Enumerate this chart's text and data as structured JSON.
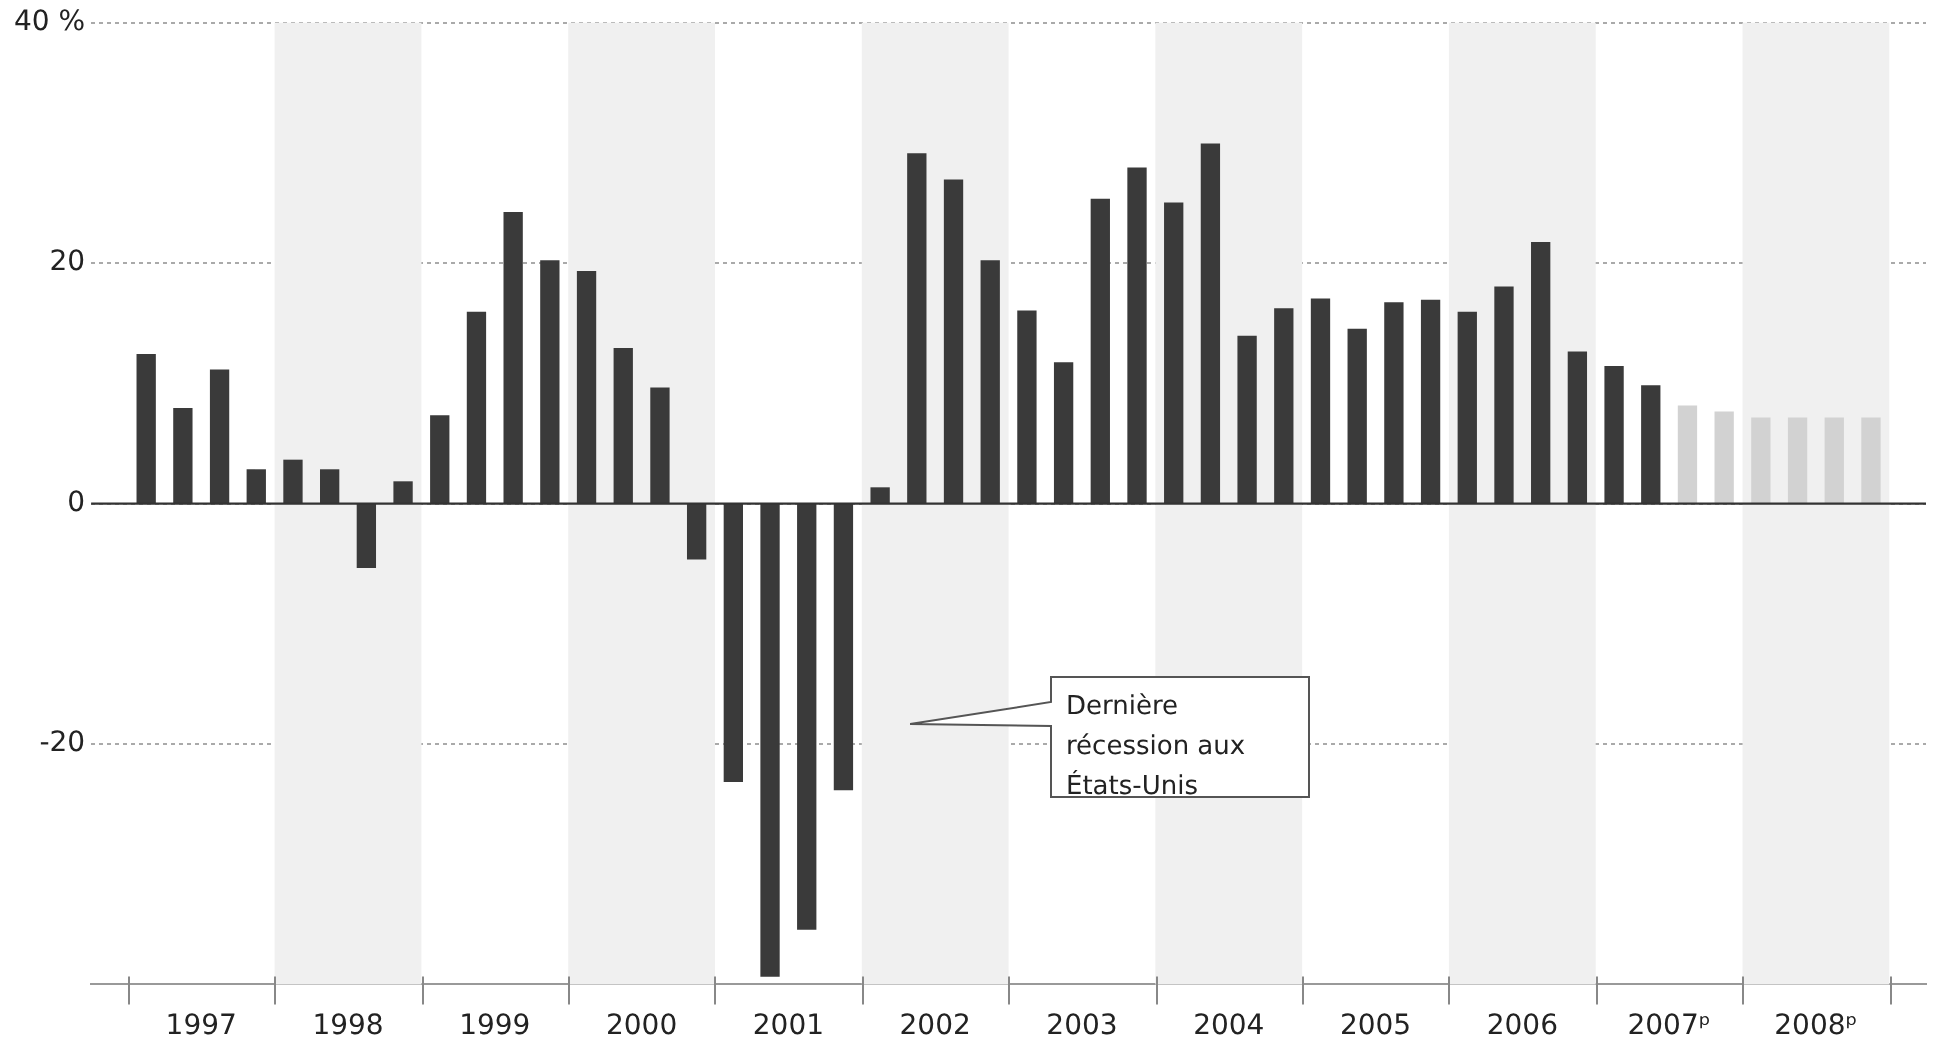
{
  "chart_data": {
    "type": "bar",
    "x": [
      1997.125,
      1997.375,
      1997.625,
      1997.875,
      1998.125,
      1998.375,
      1998.625,
      1998.875,
      1999.125,
      1999.375,
      1999.625,
      1999.875,
      2000.125,
      2000.375,
      2000.625,
      2000.875,
      2001.125,
      2001.375,
      2001.625,
      2001.875,
      2002.125,
      2002.375,
      2002.625,
      2002.875,
      2003.125,
      2003.375,
      2003.625,
      2003.875,
      2004.125,
      2004.375,
      2004.625,
      2004.875,
      2005.125,
      2005.375,
      2005.625,
      2005.875,
      2006.125,
      2006.375,
      2006.625,
      2006.875,
      2007.125,
      2007.375,
      2007.625,
      2007.875,
      2008.125,
      2008.375,
      2008.625,
      2008.875
    ],
    "values": [
      12.4,
      7.9,
      11.1,
      2.8,
      3.6,
      2.8,
      -5.3,
      1.8,
      7.3,
      15.9,
      24.2,
      20.2,
      19.3,
      12.9,
      9.6,
      -4.6,
      -23.1,
      -39.3,
      -35.4,
      -23.8,
      1.3,
      29.1,
      26.9,
      20.2,
      16.0,
      11.7,
      25.3,
      27.9,
      25.0,
      29.9,
      13.9,
      16.2,
      17.0,
      14.5,
      16.7,
      16.9,
      15.9,
      18.0,
      21.7,
      12.6,
      11.4,
      9.8,
      8.1,
      7.6,
      7.1,
      7.1,
      7.1,
      7.1
    ],
    "colors": [
      "#3a3a3a",
      "#3a3a3a",
      "#3a3a3a",
      "#3a3a3a",
      "#3a3a3a",
      "#3a3a3a",
      "#3a3a3a",
      "#3a3a3a",
      "#3a3a3a",
      "#3a3a3a",
      "#3a3a3a",
      "#3a3a3a",
      "#3a3a3a",
      "#3a3a3a",
      "#3a3a3a",
      "#3a3a3a",
      "#3a3a3a",
      "#3a3a3a",
      "#3a3a3a",
      "#3a3a3a",
      "#3a3a3a",
      "#3a3a3a",
      "#3a3a3a",
      "#3a3a3a",
      "#3a3a3a",
      "#3a3a3a",
      "#3a3a3a",
      "#3a3a3a",
      "#3a3a3a",
      "#3a3a3a",
      "#3a3a3a",
      "#3a3a3a",
      "#3a3a3a",
      "#3a3a3a",
      "#3a3a3a",
      "#3a3a3a",
      "#3a3a3a",
      "#3a3a3a",
      "#3a3a3a",
      "#3a3a3a",
      "#3a3a3a",
      "#3a3a3a",
      "#d2d2d2",
      "#d2d2d2",
      "#d2d2d2",
      "#d2d2d2",
      "#d2d2d2",
      "#d2d2d2"
    ],
    "xlim": [
      1997,
      2009
    ],
    "xticks": [
      {
        "value": 1997,
        "label": null
      },
      {
        "value": 1997.5,
        "label": "1997"
      },
      {
        "value": 1998,
        "label": null
      },
      {
        "value": 1998.5,
        "label": "1998"
      },
      {
        "value": 1999,
        "label": null
      },
      {
        "value": 1999.5,
        "label": "1999"
      },
      {
        "value": 2000,
        "label": null
      },
      {
        "value": 2000.5,
        "label": "2000"
      },
      {
        "value": 2001,
        "label": null
      },
      {
        "value": 2001.5,
        "label": "2001"
      },
      {
        "value": 2002,
        "label": null
      },
      {
        "value": 2002.5,
        "label": "2002"
      },
      {
        "value": 2003,
        "label": null
      },
      {
        "value": 2003.5,
        "label": "2003"
      },
      {
        "value": 2004,
        "label": null
      },
      {
        "value": 2004.5,
        "label": "2004"
      },
      {
        "value": 2005,
        "label": null
      },
      {
        "value": 2005.5,
        "label": "2005"
      },
      {
        "value": 2006,
        "label": null
      },
      {
        "value": 2006.5,
        "label": "2006"
      },
      {
        "value": 2007,
        "label": null
      },
      {
        "value": 2007.5,
        "label": "2007ᵖ"
      },
      {
        "value": 2008,
        "label": null
      },
      {
        "value": 2008.5,
        "label": "2008ᵖ"
      },
      {
        "value": 2009,
        "label": null
      }
    ],
    "ylim": [
      -40,
      40
    ],
    "yticks": [
      {
        "value": -40,
        "label": null
      },
      -20,
      0,
      20,
      {
        "value": 40,
        "label": "40 %"
      }
    ],
    "grid": "y",
    "legend": false,
    "bands": [
      {
        "axis": "x",
        "from": 1998,
        "to": 1999,
        "color": "#f0f0f0"
      },
      {
        "axis": "x",
        "from": 2000,
        "to": 2001,
        "color": "#f0f0f0"
      },
      {
        "axis": "x",
        "from": 2002,
        "to": 2003,
        "color": "#f0f0f0"
      },
      {
        "axis": "x",
        "from": 2004,
        "to": 2005,
        "color": "#f0f0f0"
      },
      {
        "axis": "x",
        "from": 2006,
        "to": 2007,
        "color": "#f0f0f0"
      },
      {
        "axis": "x",
        "from": 2008,
        "to": 2009,
        "color": "#f0f0f0"
      }
    ],
    "annotations": [
      "Dernière récession aux États-Unis"
    ]
  }
}
